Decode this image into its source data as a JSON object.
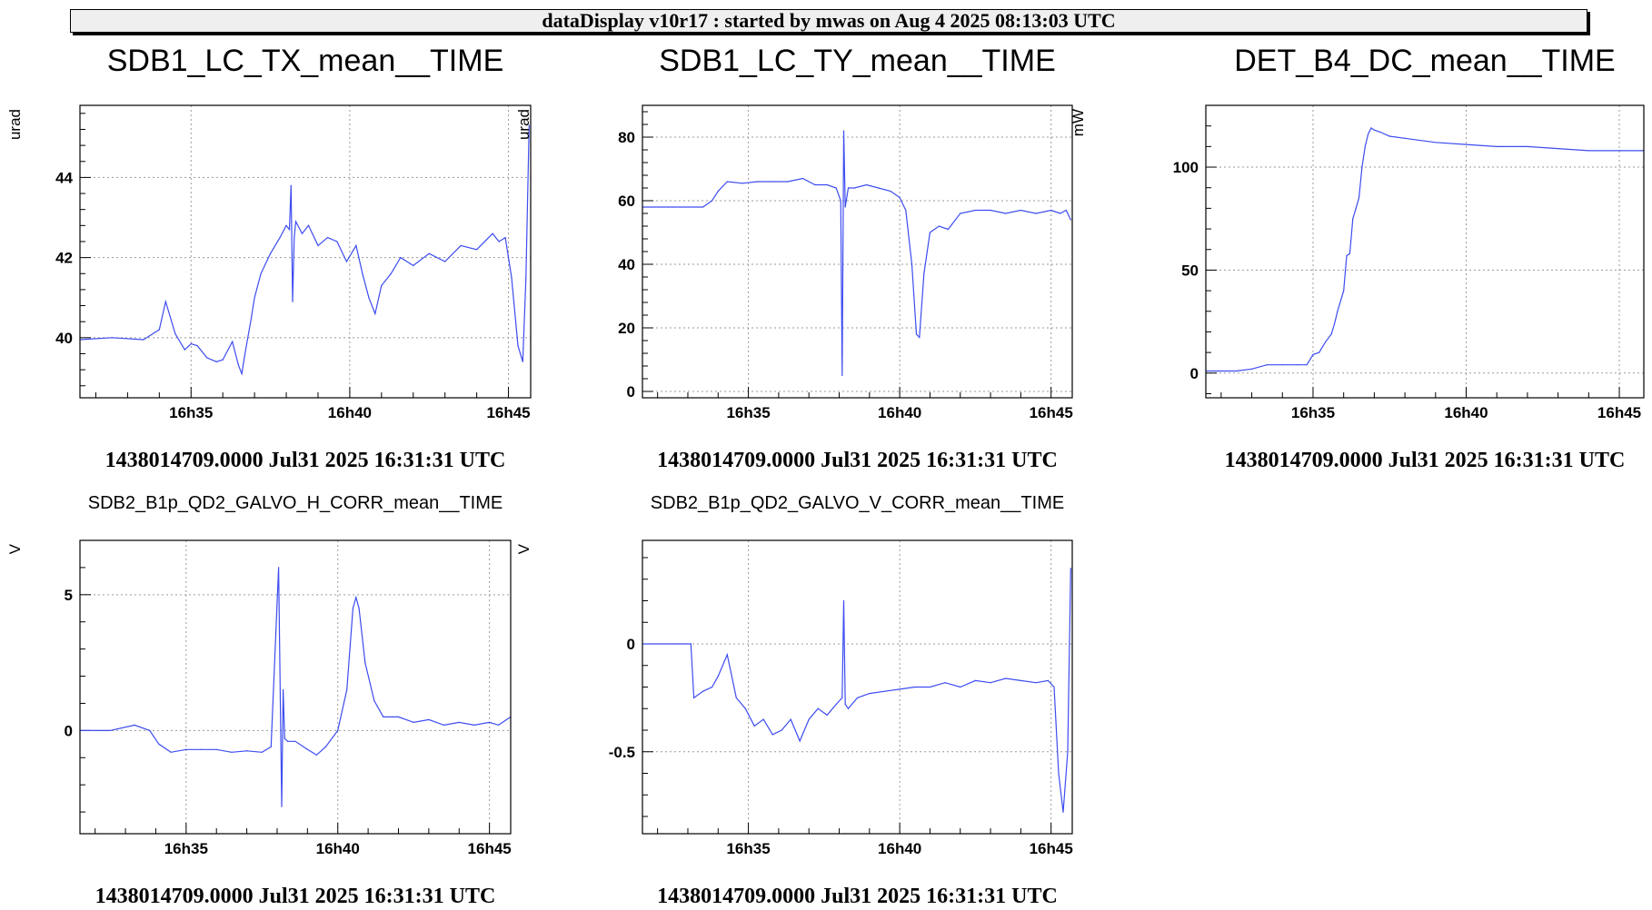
{
  "header": {
    "title": "dataDisplay v10r17 : started by mwas on Aug  4 2025 08:13:03 UTC"
  },
  "colors": {
    "series": "#3d4cf0",
    "grid": "#9a9a9a",
    "frame": "#000000"
  },
  "chart_data": [
    {
      "type": "line",
      "title": "SDB1_LC_TX_mean__TIME",
      "ylabel": "urad",
      "xlabel": "",
      "footer": "1438014709.0000 Jul31 2025 16:31:31 UTC",
      "xlim": [
        31.5,
        45.7
      ],
      "ylim": [
        38.5,
        45.8
      ],
      "xticks": [
        35,
        40,
        45
      ],
      "xticklabels": [
        "16h35",
        "16h40",
        "16h45"
      ],
      "yticks": [
        40,
        42,
        44
      ],
      "yticklabels": [
        "40",
        "42",
        "44"
      ],
      "grid": true,
      "x": [
        31.5,
        32.5,
        33.5,
        34.0,
        34.2,
        34.5,
        34.8,
        35.0,
        35.2,
        35.5,
        35.8,
        36.0,
        36.3,
        36.5,
        36.6,
        36.7,
        36.9,
        37.0,
        37.2,
        37.5,
        37.8,
        38.0,
        38.1,
        38.15,
        38.2,
        38.25,
        38.3,
        38.5,
        38.7,
        39.0,
        39.3,
        39.6,
        39.9,
        40.2,
        40.4,
        40.6,
        40.8,
        41.0,
        41.3,
        41.6,
        42.0,
        42.5,
        43.0,
        43.5,
        44.0,
        44.5,
        44.7,
        44.9,
        45.1,
        45.3,
        45.45,
        45.55,
        45.65
      ],
      "y": [
        39.95,
        40.0,
        39.95,
        40.2,
        40.9,
        40.1,
        39.7,
        39.85,
        39.8,
        39.5,
        39.4,
        39.45,
        39.9,
        39.3,
        39.1,
        39.6,
        40.5,
        41.0,
        41.6,
        42.1,
        42.5,
        42.8,
        42.7,
        43.8,
        40.9,
        42.5,
        42.9,
        42.6,
        42.8,
        42.3,
        42.5,
        42.4,
        41.9,
        42.3,
        41.6,
        41.0,
        40.6,
        41.3,
        41.6,
        42.0,
        41.8,
        42.1,
        41.9,
        42.3,
        42.2,
        42.6,
        42.4,
        42.5,
        41.5,
        39.8,
        39.4,
        41.5,
        45.3
      ],
      "layout": [
        30,
        96,
        560,
        410,
        88,
        100,
        496,
        278
      ]
    },
    {
      "type": "line",
      "title": "SDB1_LC_TY_mean__TIME",
      "ylabel": "urad",
      "xlabel": "",
      "footer": "1438014709.0000 Jul31 2025 16:31:31 UTC",
      "xlim": [
        31.5,
        45.7
      ],
      "ylim": [
        -2.0,
        90.0
      ],
      "xticks": [
        35,
        40,
        45
      ],
      "xticklabels": [
        "16h35",
        "16h40",
        "16h45"
      ],
      "yticks": [
        0,
        20,
        40,
        60,
        80
      ],
      "yticklabels": [
        "0",
        "20",
        "40",
        "60",
        "80"
      ],
      "grid": true,
      "x": [
        31.5,
        32.5,
        33.5,
        33.8,
        34.0,
        34.3,
        34.8,
        35.3,
        35.8,
        36.3,
        36.8,
        37.2,
        37.6,
        37.9,
        38.05,
        38.1,
        38.15,
        38.2,
        38.3,
        38.5,
        38.9,
        39.3,
        39.7,
        40.0,
        40.2,
        40.4,
        40.55,
        40.65,
        40.8,
        41.0,
        41.3,
        41.6,
        42.0,
        42.5,
        43.0,
        43.5,
        44.0,
        44.5,
        45.0,
        45.3,
        45.5,
        45.65
      ],
      "y": [
        58,
        58,
        58,
        60,
        63,
        66,
        65.5,
        66,
        66,
        66,
        67,
        65,
        65,
        64,
        60,
        5,
        82,
        58,
        64,
        64,
        65,
        64,
        63,
        61,
        57,
        40,
        18,
        17,
        37,
        50,
        52,
        51,
        56,
        57,
        57,
        56,
        57,
        56,
        57,
        56,
        57,
        54
      ],
      "layout": [
        568,
        96,
        1130,
        410,
        707,
        100,
        473,
        278
      ]
    },
    {
      "type": "line",
      "title": "DET_B4_DC_mean__TIME",
      "ylabel": "mW",
      "xlabel": "",
      "footer": "1438014709.0000 Jul31 2025 16:31:31 UTC",
      "xlim": [
        31.5,
        45.8
      ],
      "ylim": [
        -12.0,
        130.0
      ],
      "xticks": [
        35,
        40,
        45
      ],
      "xticklabels": [
        "16h35",
        "16h40",
        "16h45"
      ],
      "yticks": [
        0,
        50,
        100
      ],
      "yticklabels": [
        "0",
        "50",
        "100"
      ],
      "grid": true,
      "x": [
        31.5,
        32.5,
        33.0,
        33.5,
        34.0,
        34.5,
        34.8,
        35.0,
        35.2,
        35.4,
        35.6,
        35.7,
        35.8,
        36.0,
        36.1,
        36.2,
        36.3,
        36.4,
        36.5,
        36.6,
        36.7,
        36.8,
        36.9,
        37.0,
        37.2,
        37.5,
        38.0,
        39.0,
        40.0,
        41.0,
        42.0,
        43.0,
        44.0,
        45.0,
        45.8
      ],
      "y": [
        1,
        1,
        2,
        4,
        4,
        4,
        4,
        9,
        10,
        15,
        19,
        24,
        30,
        40,
        57,
        58,
        75,
        80,
        85,
        100,
        110,
        116,
        119,
        118,
        117,
        115,
        114,
        112,
        111,
        110,
        110,
        109,
        108,
        108,
        108
      ],
      "layout": [
        1188,
        96,
        1818,
        410,
        1327,
        115,
        482,
        265
      ]
    },
    {
      "type": "line",
      "title": "SDB2_B1p_QD2_GALVO_H_CORR_mean__TIME",
      "ylabel": "V",
      "xlabel": "",
      "footer": "1438014709.0000 Jul31 2025 16:31:31 UTC",
      "xlim": [
        31.5,
        45.7
      ],
      "ylim": [
        -3.8,
        7.0
      ],
      "xticks": [
        35,
        40,
        45
      ],
      "xticklabels": [
        "16h35",
        "16h40",
        "16h45"
      ],
      "yticks": [
        0,
        5
      ],
      "yticklabels": [
        "0",
        "5"
      ],
      "grid": true,
      "x": [
        31.5,
        32.5,
        33.3,
        33.8,
        34.1,
        34.5,
        35.0,
        35.5,
        36.0,
        36.5,
        37.0,
        37.5,
        37.8,
        38.05,
        38.15,
        38.2,
        38.25,
        38.35,
        38.6,
        39.0,
        39.3,
        39.6,
        40.0,
        40.3,
        40.5,
        40.6,
        40.7,
        40.9,
        41.2,
        41.5,
        42.0,
        42.5,
        43.0,
        43.5,
        44.0,
        44.5,
        45.0,
        45.3,
        45.7
      ],
      "y": [
        0,
        0,
        0.2,
        0,
        -0.5,
        -0.8,
        -0.7,
        -0.7,
        -0.7,
        -0.8,
        -0.75,
        -0.8,
        -0.6,
        6.0,
        -2.8,
        1.5,
        -0.3,
        -0.4,
        -0.4,
        -0.7,
        -0.9,
        -0.6,
        0,
        1.5,
        4.5,
        4.9,
        4.5,
        2.5,
        1.1,
        0.5,
        0.5,
        0.3,
        0.4,
        0.2,
        0.3,
        0.2,
        0.3,
        0.2,
        0.5
      ],
      "layout": [
        0,
        530,
        568,
        985,
        88,
        595,
        474,
        323
      ]
    },
    {
      "type": "line",
      "title": "SDB2_B1p_QD2_GALVO_V_CORR_mean__TIME",
      "ylabel": "V",
      "xlabel": "",
      "footer": "1438014709.0000 Jul31 2025 16:31:31 UTC",
      "xlim": [
        31.5,
        45.7
      ],
      "ylim": [
        -0.88,
        0.48
      ],
      "xticks": [
        35,
        40,
        45
      ],
      "xticklabels": [
        "16h35",
        "16h40",
        "16h45"
      ],
      "yticks": [
        -0.5,
        0
      ],
      "yticklabels": [
        "-0.5",
        "0"
      ],
      "grid": true,
      "x": [
        31.5,
        32.5,
        33.1,
        33.2,
        33.5,
        33.8,
        34.0,
        34.3,
        34.6,
        34.9,
        35.2,
        35.5,
        35.8,
        36.1,
        36.4,
        36.7,
        37.0,
        37.3,
        37.6,
        37.9,
        38.1,
        38.15,
        38.2,
        38.3,
        38.6,
        39.0,
        39.5,
        40.0,
        40.5,
        41.0,
        41.5,
        42.0,
        42.5,
        43.0,
        43.5,
        44.0,
        44.5,
        44.9,
        45.1,
        45.25,
        45.4,
        45.55,
        45.65
      ],
      "y": [
        0,
        0,
        0,
        -0.25,
        -0.22,
        -0.2,
        -0.15,
        -0.05,
        -0.25,
        -0.3,
        -0.38,
        -0.35,
        -0.42,
        -0.4,
        -0.35,
        -0.45,
        -0.35,
        -0.3,
        -0.33,
        -0.28,
        -0.25,
        0.2,
        -0.28,
        -0.3,
        -0.25,
        -0.23,
        -0.22,
        -0.21,
        -0.2,
        -0.2,
        -0.18,
        -0.2,
        -0.17,
        -0.18,
        -0.16,
        -0.17,
        -0.18,
        -0.17,
        -0.2,
        -0.6,
        -0.78,
        -0.5,
        0.35
      ],
      "layout": [
        568,
        530,
        1130,
        985,
        707,
        595,
        473,
        323
      ]
    }
  ]
}
